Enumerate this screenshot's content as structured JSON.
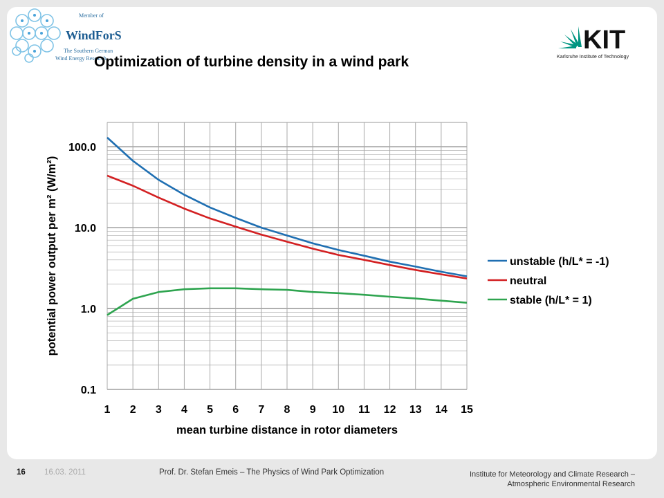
{
  "header": {
    "title": "Optimization of turbine density in a wind park",
    "left_logo": {
      "member_of": "Member of",
      "name": "WindForS",
      "subtitle_line1": "The Southern German",
      "subtitle_line2": "Wind Energy Research"
    },
    "right_logo": {
      "name": "KIT",
      "subtitle": "Karlsruhe Institute of Technology",
      "color": "#009682"
    }
  },
  "chart_data": {
    "type": "line",
    "x": [
      1,
      2,
      3,
      4,
      5,
      6,
      7,
      8,
      9,
      10,
      11,
      12,
      13,
      14,
      15
    ],
    "xlabel": "mean turbine distance in rotor diameters",
    "ylabel": "potential power output per m² (W/m²)",
    "yscale": "log",
    "ylim": [
      0.1,
      200
    ],
    "yticks": [
      0.1,
      1.0,
      10.0,
      100.0
    ],
    "ytick_labels": [
      "0.1",
      "1.0",
      "10.0",
      "100.0"
    ],
    "xticks": [
      1,
      2,
      3,
      4,
      5,
      6,
      7,
      8,
      9,
      10,
      11,
      12,
      13,
      14,
      15
    ],
    "grid": true,
    "legend_position": "right",
    "series": [
      {
        "name": "unstable (h/L* = -1)",
        "color": "#1f6fb2",
        "values": [
          130,
          67,
          39,
          25.5,
          17.8,
          13.2,
          10.0,
          8.0,
          6.4,
          5.3,
          4.5,
          3.8,
          3.3,
          2.85,
          2.5
        ]
      },
      {
        "name": "neutral",
        "color": "#d32022",
        "values": [
          44,
          33,
          23.5,
          17.2,
          13.0,
          10.3,
          8.2,
          6.7,
          5.5,
          4.6,
          4.0,
          3.45,
          3.0,
          2.65,
          2.35
        ]
      },
      {
        "name": "stable (h/L* = 1)",
        "color": "#2ea44f",
        "values": [
          0.83,
          1.32,
          1.6,
          1.73,
          1.78,
          1.78,
          1.73,
          1.7,
          1.6,
          1.55,
          1.48,
          1.4,
          1.33,
          1.25,
          1.18
        ]
      }
    ]
  },
  "footer": {
    "page": "16",
    "date": "16.03. 2011",
    "presenter": "Prof. Dr. Stefan Emeis – The Physics of Wind Park Optimization",
    "institute_line1": "Institute for Meteorology and Climate Research –",
    "institute_line2": "Atmospheric Environmental Research"
  }
}
